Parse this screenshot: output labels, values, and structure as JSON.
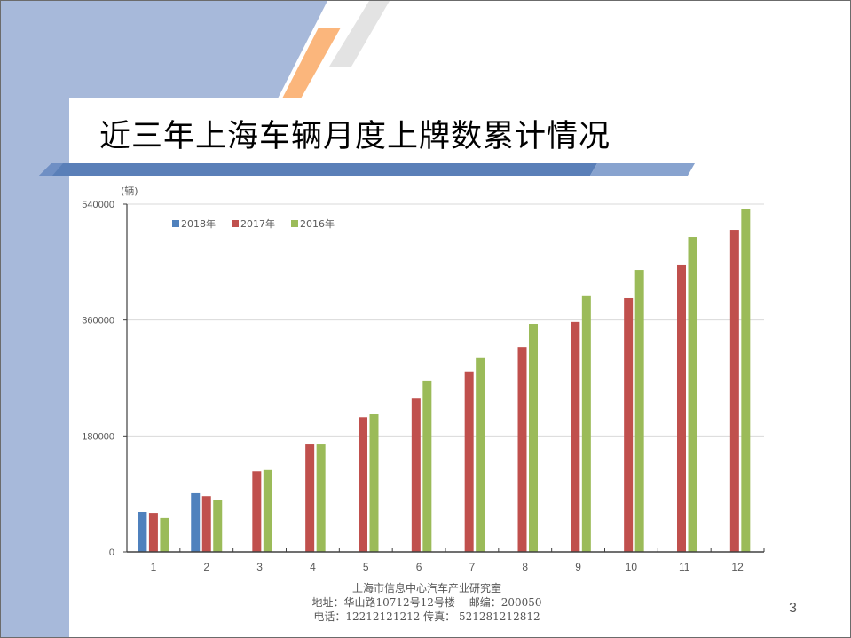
{
  "slide": {
    "title": "近三年上海车辆月度上牌数累计情况",
    "page_number": "3",
    "footer": {
      "line1": "上海市信息中心汽车产业研究室",
      "line2": "地址：华山路10712号12号楼　 邮编：200050",
      "line3": "电话：12212121212  传真： 521281212812"
    },
    "colors": {
      "side_panel": "#a7b9da",
      "accent_orange": "#fbb67c",
      "accent_gray": "#e3e3e3",
      "title_bar_dark": "#5a7fb8",
      "title_bar_light": "#88a3cf"
    }
  },
  "chart_data": {
    "type": "bar",
    "title": "",
    "unit_label": "(辆)",
    "xlabel": "",
    "ylabel": "(辆)",
    "ylim": [
      0,
      540000
    ],
    "yticks": [
      0,
      180000,
      360000,
      540000
    ],
    "ytick_labels": [
      "0",
      "180000",
      "360000",
      "540000"
    ],
    "grid": true,
    "legend_position": "top-left inside",
    "categories": [
      "1",
      "2",
      "3",
      "4",
      "5",
      "6",
      "7",
      "8",
      "9",
      "10",
      "11",
      "12"
    ],
    "series": [
      {
        "name": "2018年",
        "color": "#4f81bd",
        "values": [
          62000,
          91000,
          null,
          null,
          null,
          null,
          null,
          null,
          null,
          null,
          null,
          null
        ]
      },
      {
        "name": "2017年",
        "color": "#c0504d",
        "values": [
          60500,
          86500,
          125000,
          168000,
          209000,
          238000,
          280000,
          318000,
          357000,
          394000,
          445000,
          500000
        ]
      },
      {
        "name": "2016年",
        "color": "#9bbb59",
        "values": [
          52500,
          80000,
          127000,
          168000,
          213500,
          266000,
          302000,
          354000,
          397000,
          438000,
          489000,
          533000
        ]
      }
    ]
  }
}
